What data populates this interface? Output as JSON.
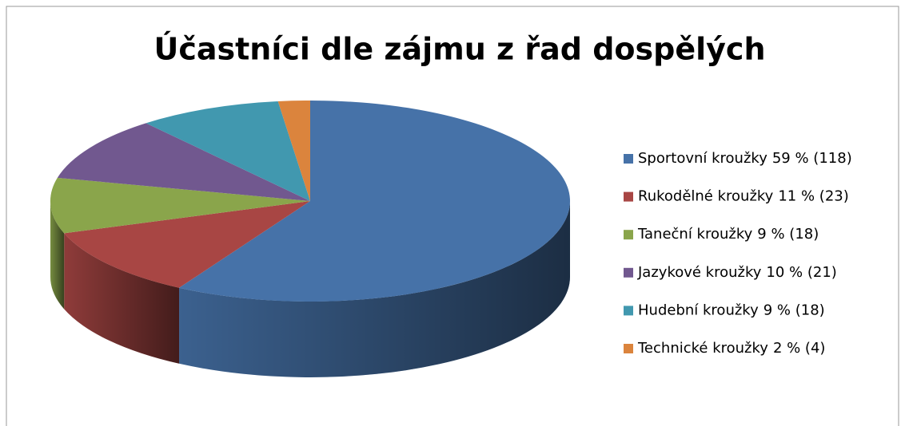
{
  "chart_data": {
    "type": "pie",
    "title": "Účastníci dle zájmu z řad dospělých",
    "categories": [
      "Sportovní kroužky",
      "Rukodělné kroužky",
      "Taneční kroužky",
      "Jazykové kroužky",
      "Hudební kroužky",
      "Technické kroužky"
    ],
    "values": [
      118,
      23,
      18,
      21,
      18,
      4
    ],
    "value_labels": [
      "59 % (118)",
      "11 % (23)",
      "9 % (18)",
      "10 % (21)",
      "9 % (18)",
      "2 % (4)"
    ],
    "colors": [
      "#4672a8",
      "#a84644",
      "#8aa54b",
      "#71588f",
      "#4198af",
      "#db843d"
    ],
    "legend": "right"
  }
}
